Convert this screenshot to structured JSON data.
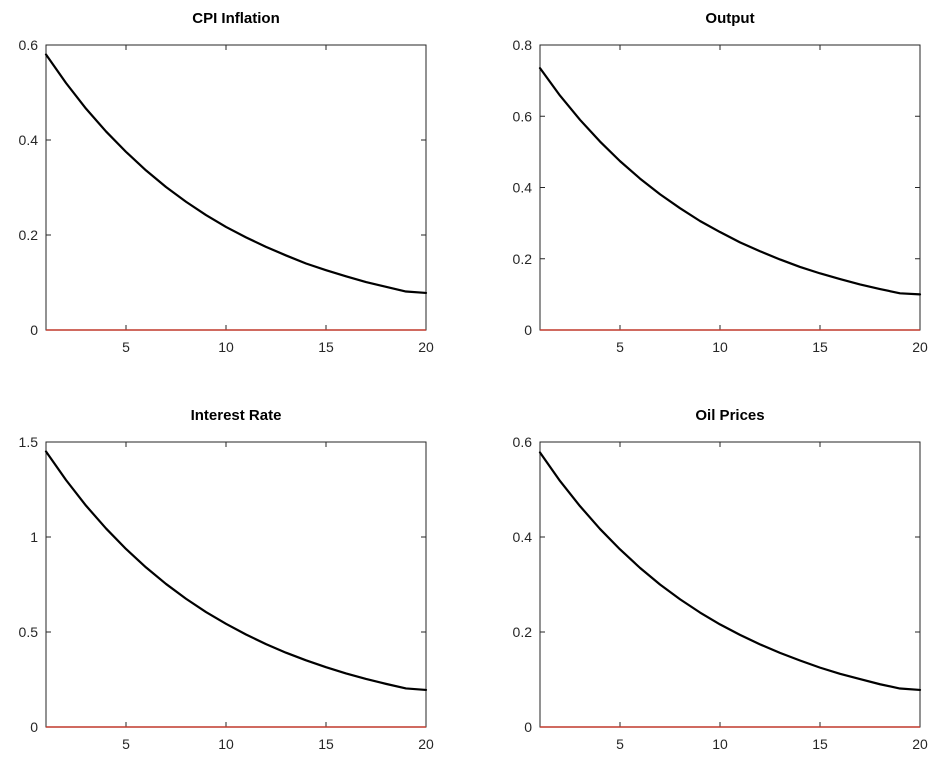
{
  "chart_data": [
    {
      "type": "line",
      "title": "CPI Inflation",
      "xlabel": "",
      "ylabel": "",
      "xlim": [
        1,
        20
      ],
      "ylim": [
        0,
        0.6
      ],
      "xticks": [
        5,
        10,
        15,
        20
      ],
      "yticks": [
        0,
        0.2,
        0.4,
        0.6
      ],
      "ytick_labels": [
        "0",
        "0.2",
        "0.4",
        "0.6"
      ],
      "grid": false,
      "x": [
        1,
        2,
        3,
        4,
        5,
        6,
        7,
        8,
        9,
        10,
        11,
        12,
        13,
        14,
        15,
        16,
        17,
        18,
        19,
        20
      ],
      "series": [
        {
          "values": [
            0.58,
            0.52,
            0.466,
            0.418,
            0.375,
            0.336,
            0.301,
            0.27,
            0.242,
            0.217,
            0.195,
            0.175,
            0.157,
            0.14,
            0.126,
            0.113,
            0.101,
            0.091,
            0.081,
            0.078
          ],
          "color": "#000000"
        },
        {
          "values": [
            0,
            0,
            0,
            0,
            0,
            0,
            0,
            0,
            0,
            0,
            0,
            0,
            0,
            0,
            0,
            0,
            0,
            0,
            0,
            0
          ],
          "color": "#c0392b"
        }
      ]
    },
    {
      "type": "line",
      "title": "Output",
      "xlabel": "",
      "ylabel": "",
      "xlim": [
        1,
        20
      ],
      "ylim": [
        0,
        0.8
      ],
      "xticks": [
        5,
        10,
        15,
        20
      ],
      "yticks": [
        0,
        0.2,
        0.4,
        0.6,
        0.8
      ],
      "ytick_labels": [
        "0",
        "0.2",
        "0.4",
        "0.6",
        "0.8"
      ],
      "grid": false,
      "x": [
        1,
        2,
        3,
        4,
        5,
        6,
        7,
        8,
        9,
        10,
        11,
        12,
        13,
        14,
        15,
        16,
        17,
        18,
        19,
        20
      ],
      "series": [
        {
          "values": [
            0.735,
            0.658,
            0.59,
            0.529,
            0.474,
            0.425,
            0.381,
            0.342,
            0.306,
            0.275,
            0.246,
            0.221,
            0.198,
            0.177,
            0.159,
            0.143,
            0.128,
            0.115,
            0.103,
            0.1
          ],
          "color": "#000000"
        },
        {
          "values": [
            0,
            0,
            0,
            0,
            0,
            0,
            0,
            0,
            0,
            0,
            0,
            0,
            0,
            0,
            0,
            0,
            0,
            0,
            0,
            0
          ],
          "color": "#c0392b"
        }
      ]
    },
    {
      "type": "line",
      "title": "Interest Rate",
      "xlabel": "",
      "ylabel": "",
      "xlim": [
        1,
        20
      ],
      "ylim": [
        0,
        1.5
      ],
      "xticks": [
        5,
        10,
        15,
        20
      ],
      "yticks": [
        0,
        0.5,
        1,
        1.5
      ],
      "ytick_labels": [
        "0",
        "0.5",
        "1",
        "1.5"
      ],
      "grid": false,
      "x": [
        1,
        2,
        3,
        4,
        5,
        6,
        7,
        8,
        9,
        10,
        11,
        12,
        13,
        14,
        15,
        16,
        17,
        18,
        19,
        20
      ],
      "series": [
        {
          "values": [
            1.45,
            1.3,
            1.165,
            1.045,
            0.937,
            0.84,
            0.753,
            0.675,
            0.605,
            0.543,
            0.487,
            0.436,
            0.391,
            0.351,
            0.315,
            0.282,
            0.253,
            0.227,
            0.203,
            0.195
          ],
          "color": "#000000"
        },
        {
          "values": [
            0,
            0,
            0,
            0,
            0,
            0,
            0,
            0,
            0,
            0,
            0,
            0,
            0,
            0,
            0,
            0,
            0,
            0,
            0,
            0
          ],
          "color": "#c0392b"
        }
      ]
    },
    {
      "type": "line",
      "title": "Oil Prices",
      "xlabel": "",
      "ylabel": "",
      "xlim": [
        1,
        20
      ],
      "ylim": [
        0,
        0.6
      ],
      "xticks": [
        5,
        10,
        15,
        20
      ],
      "yticks": [
        0,
        0.2,
        0.4,
        0.6
      ],
      "ytick_labels": [
        "0",
        "0.2",
        "0.4",
        "0.6"
      ],
      "grid": false,
      "x": [
        1,
        2,
        3,
        4,
        5,
        6,
        7,
        8,
        9,
        10,
        11,
        12,
        13,
        14,
        15,
        16,
        17,
        18,
        19,
        20
      ],
      "series": [
        {
          "values": [
            0.578,
            0.518,
            0.465,
            0.417,
            0.374,
            0.335,
            0.3,
            0.269,
            0.241,
            0.216,
            0.194,
            0.174,
            0.156,
            0.14,
            0.125,
            0.112,
            0.101,
            0.09,
            0.081,
            0.078
          ],
          "color": "#000000"
        },
        {
          "values": [
            0,
            0,
            0,
            0,
            0,
            0,
            0,
            0,
            0,
            0,
            0,
            0,
            0,
            0,
            0,
            0,
            0,
            0,
            0,
            0
          ],
          "color": "#c0392b"
        }
      ]
    }
  ]
}
